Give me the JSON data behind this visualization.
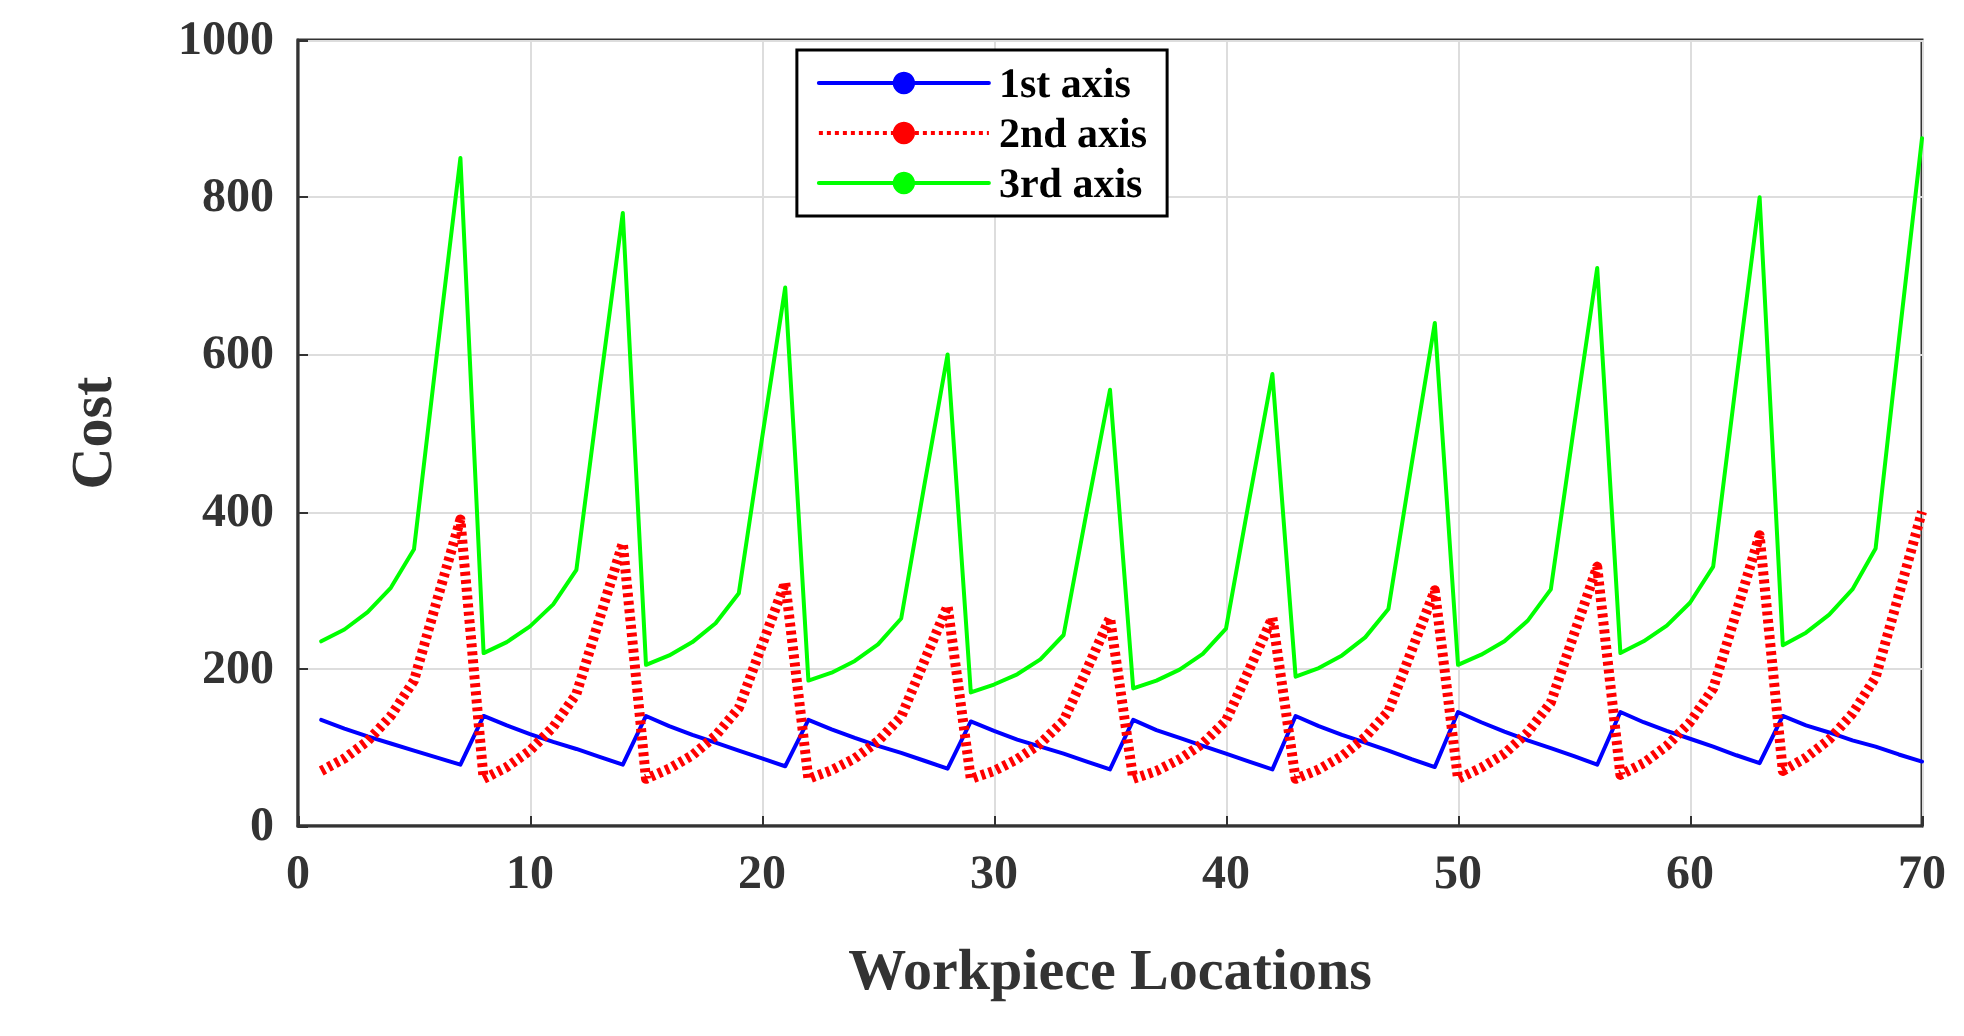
{
  "chart_data": {
    "type": "line",
    "xlabel": "Workpiece Locations",
    "ylabel": "Cost",
    "x": [
      1,
      2,
      3,
      4,
      5,
      6,
      7,
      8,
      9,
      10,
      11,
      12,
      13,
      14,
      15,
      16,
      17,
      18,
      19,
      20,
      21,
      22,
      23,
      24,
      25,
      26,
      27,
      28,
      29,
      30,
      31,
      32,
      33,
      34,
      35,
      36,
      37,
      38,
      39,
      40,
      41,
      42,
      43,
      44,
      45,
      46,
      47,
      48,
      49,
      50,
      51,
      52,
      53,
      54,
      55,
      56,
      57,
      58,
      59,
      60,
      61,
      62,
      63,
      64,
      65,
      66,
      67,
      68,
      69,
      70
    ],
    "series": [
      {
        "name": "1st axis",
        "color": "#0000ff",
        "line_style": "solid",
        "values": [
          135,
          124,
          114,
          105,
          96,
          87,
          78,
          140,
          128,
          117,
          107,
          98,
          88,
          78,
          140,
          127,
          116,
          106,
          96,
          86,
          76,
          135,
          123,
          112,
          102,
          93,
          83,
          73,
          133,
          121,
          110,
          101,
          92,
          82,
          72,
          135,
          122,
          112,
          102,
          92,
          82,
          72,
          140,
          127,
          116,
          106,
          96,
          85,
          75,
          145,
          132,
          120,
          109,
          99,
          89,
          78,
          145,
          132,
          121,
          111,
          101,
          90,
          80,
          140,
          128,
          119,
          109,
          101,
          91,
          82
        ]
      },
      {
        "name": "2nd axis",
        "color": "#ff0000",
        "line_style": "dotted",
        "values": [
          70,
          86,
          108,
          140,
          185,
          288,
          390,
          60,
          75,
          96,
          126,
          168,
          264,
          360,
          60,
          73,
          90,
          115,
          150,
          230,
          310,
          60,
          71,
          86,
          108,
          139,
          210,
          280,
          60,
          70,
          85,
          105,
          134,
          199,
          265,
          60,
          70,
          85,
          105,
          134,
          199,
          265,
          60,
          72,
          89,
          113,
          146,
          223,
          300,
          60,
          74,
          92,
          119,
          157,
          244,
          330,
          65,
          80,
          102,
          132,
          175,
          272,
          370,
          70,
          87,
          110,
          143,
          189,
          294,
          400
        ]
      },
      {
        "name": "3rd axis",
        "color": "#00ff00",
        "line_style": "solid",
        "values": [
          235,
          250,
          272,
          303,
          352,
          604,
          850,
          220,
          234,
          254,
          282,
          326,
          556,
          780,
          205,
          217,
          234,
          258,
          296,
          493,
          685,
          185,
          195,
          210,
          231,
          264,
          434,
          600,
          170,
          180,
          193,
          212,
          243,
          401,
          555,
          175,
          185,
          199,
          219,
          251,
          415,
          575,
          190,
          201,
          217,
          240,
          276,
          460,
          640,
          205,
          218,
          235,
          261,
          301,
          508,
          710,
          220,
          235,
          255,
          284,
          330,
          568,
          800,
          230,
          246,
          269,
          301,
          353,
          617,
          875
        ]
      }
    ],
    "xlim": [
      0,
      70
    ],
    "xticks": [
      0,
      10,
      20,
      30,
      40,
      50,
      60,
      70
    ],
    "ylim": [
      0,
      1000
    ],
    "yticks": [
      0,
      200,
      400,
      600,
      800,
      1000
    ],
    "grid": true,
    "legend": "top",
    "marker": "none"
  }
}
